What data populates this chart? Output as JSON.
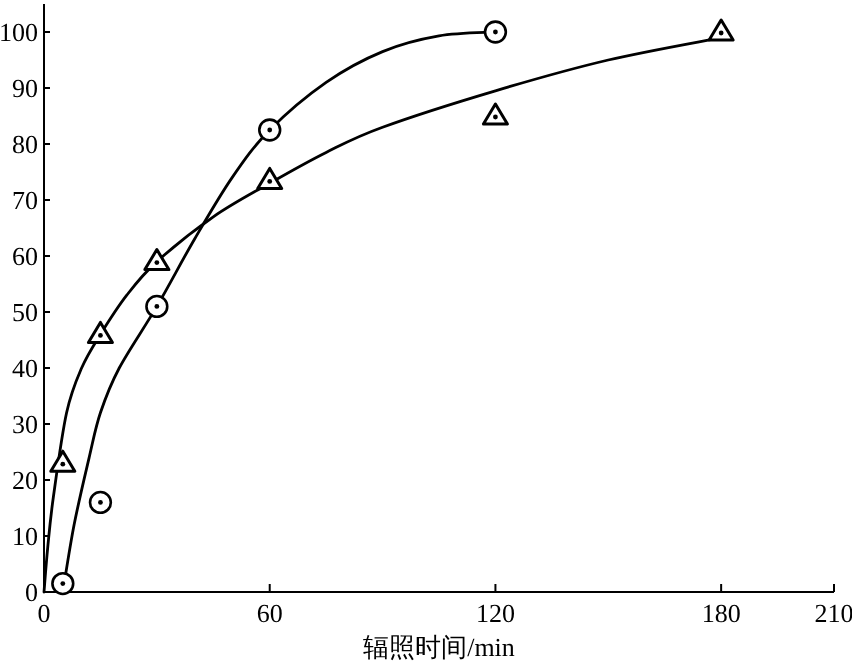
{
  "chart_data": {
    "type": "scatter",
    "xlabel": "辐照时间/min",
    "xlim": [
      0,
      210
    ],
    "ylim": [
      0,
      105
    ],
    "xticks": [
      0,
      60,
      120,
      180,
      210
    ],
    "yticks": [
      0,
      10,
      20,
      30,
      40,
      50,
      60,
      70,
      80,
      90,
      100
    ],
    "grid": false,
    "series": [
      {
        "marker": "circle",
        "color": "#000000",
        "x": [
          5,
          15,
          30,
          60,
          120
        ],
        "values": [
          1.5,
          16,
          51,
          82.5,
          100
        ]
      },
      {
        "marker": "triangle",
        "color": "#000000",
        "x": [
          5,
          15,
          30,
          60,
          120,
          180
        ],
        "values": [
          23,
          46,
          59,
          73.5,
          85,
          100
        ]
      },
      {
        "type": "line",
        "marker": "none",
        "line_style": "solid",
        "color": "#000000",
        "x": [
          5,
          8,
          12,
          15,
          20,
          30,
          40,
          50,
          60,
          75,
          90,
          105,
          120
        ],
        "values": [
          0,
          12,
          24,
          32,
          40,
          51,
          63,
          74,
          82.5,
          91,
          96.5,
          99.3,
          100
        ]
      },
      {
        "type": "line",
        "marker": "none",
        "line_style": "solid",
        "color": "#000000",
        "x": [
          0,
          1,
          2.5,
          6,
          10,
          15,
          22,
          30,
          45,
          60,
          75,
          90,
          120,
          150,
          180
        ],
        "values": [
          0,
          8,
          17,
          32,
          40,
          46,
          53,
          59,
          67,
          73,
          78.5,
          83,
          89.5,
          95,
          99
        ]
      }
    ]
  }
}
